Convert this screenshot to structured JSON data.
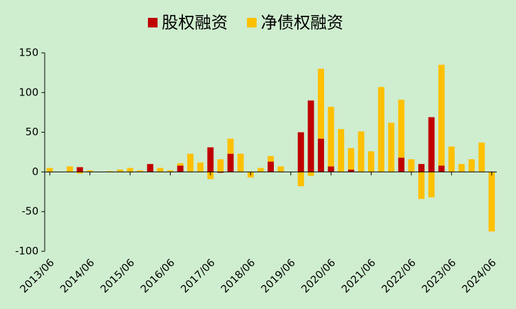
{
  "chart_data": {
    "type": "bar",
    "stacked": true,
    "categories": [
      "2013/06",
      null,
      null,
      null,
      "2014/06",
      null,
      null,
      null,
      "2015/06",
      null,
      null,
      null,
      "2016/06",
      null,
      null,
      null,
      "2017/06",
      null,
      null,
      null,
      "2018/06",
      null,
      null,
      null,
      "2019/06",
      null,
      null,
      null,
      "2020/06",
      null,
      null,
      null,
      "2021/06",
      null,
      null,
      null,
      "2022/06",
      null,
      null,
      null,
      "2023/06",
      null,
      null,
      null,
      "2024/06"
    ],
    "series": [
      {
        "name": "股权融资",
        "color": "#c00000",
        "values": [
          0,
          0,
          0,
          6,
          0,
          0,
          0,
          0,
          0,
          0,
          10,
          0,
          0,
          8,
          0,
          0,
          31,
          -1,
          23,
          0,
          0,
          0,
          13,
          0,
          0,
          50,
          90,
          42,
          7,
          0,
          3,
          0,
          0,
          0,
          0,
          18,
          0,
          10,
          69,
          8,
          0,
          0,
          0,
          0,
          0
        ]
      },
      {
        "name": "净债权融资",
        "color": "#ffc000",
        "values": [
          5,
          0,
          7,
          -2,
          2,
          0,
          1,
          3,
          5,
          2,
          0,
          5,
          2,
          3,
          23,
          12,
          -9,
          16,
          19,
          23,
          -7,
          5,
          7,
          7,
          0,
          -18,
          -5,
          88,
          75,
          54,
          27,
          51,
          26,
          107,
          62,
          73,
          16,
          -34,
          -32,
          127,
          32,
          10,
          16,
          37,
          -75
        ]
      }
    ],
    "ylim": [
      -100,
      150
    ],
    "yticks": [
      -100,
      -50,
      0,
      50,
      100,
      150
    ],
    "legend": "top"
  }
}
